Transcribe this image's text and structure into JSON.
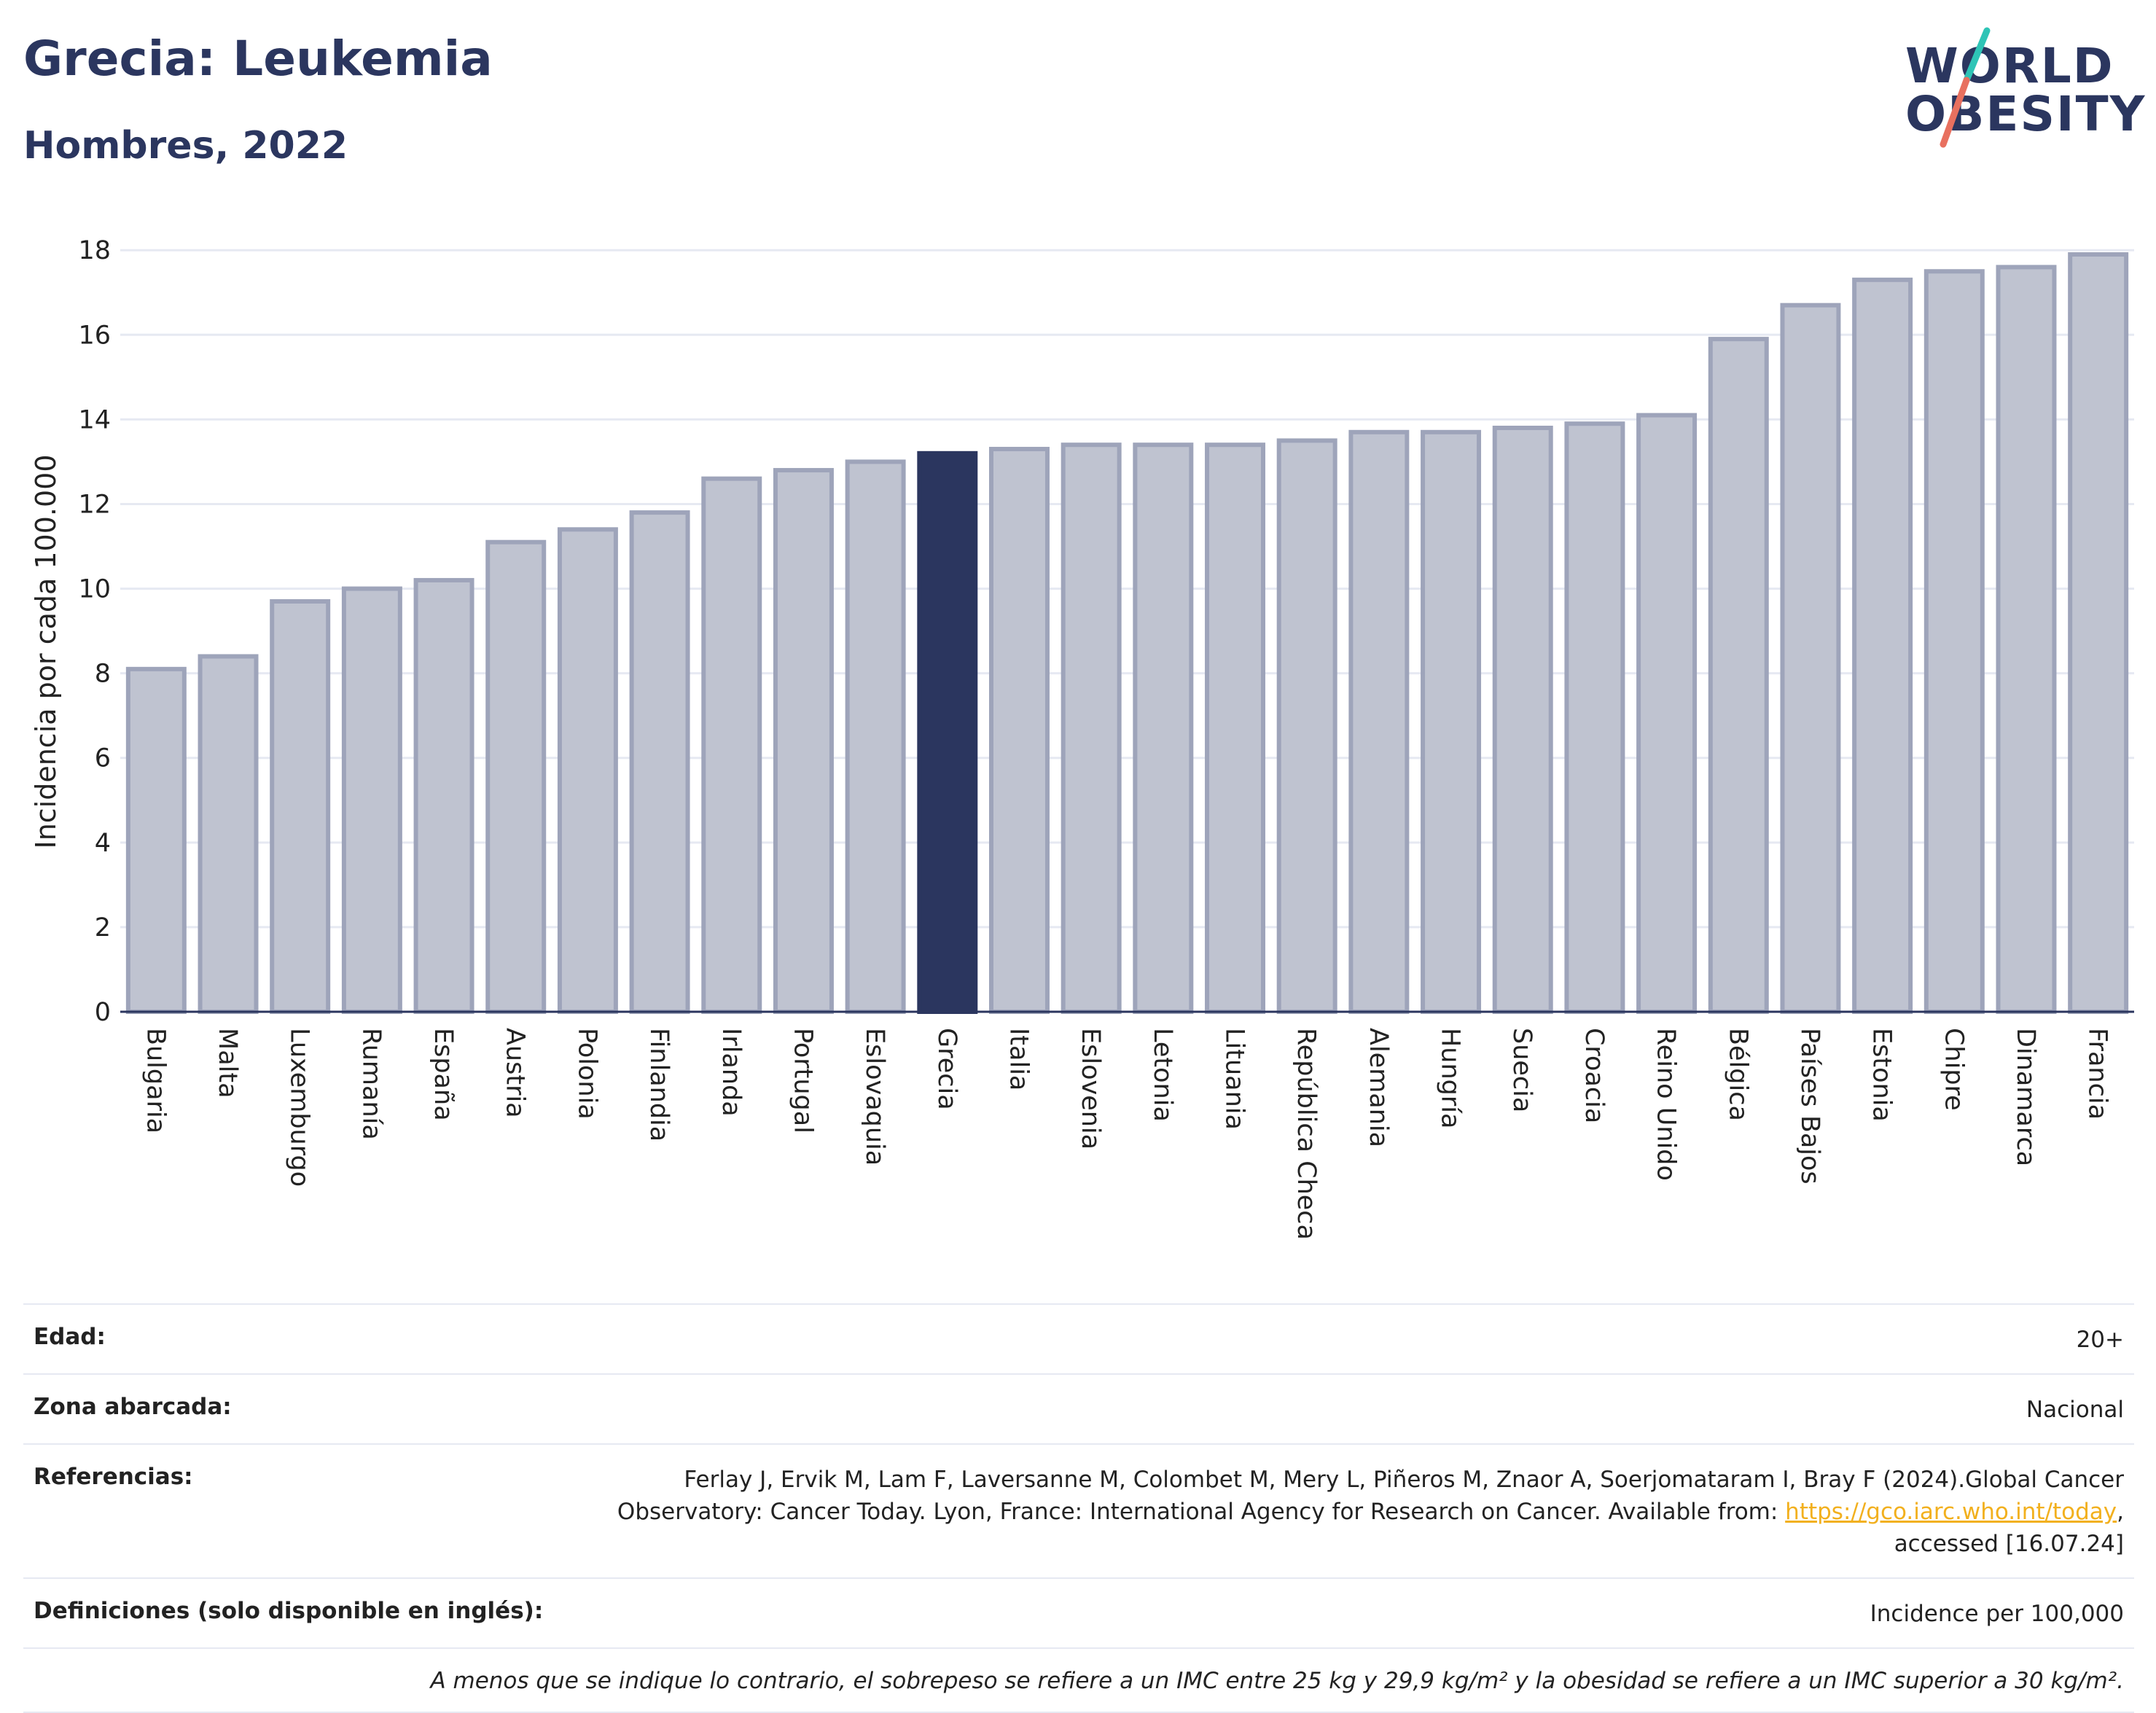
{
  "header": {
    "title": "Grecia: Leukemia",
    "subtitle": "Hombres, 2022"
  },
  "logo": {
    "line1": "WORLD",
    "line2": "OBESITY",
    "slash_colors": [
      "#2ec4b6",
      "#e8705f"
    ]
  },
  "colors": {
    "bar_default_fill": "#bfc3d0",
    "bar_default_stroke": "#9ea4ba",
    "bar_highlight": "#2b365f",
    "grid": "#e6e9f2",
    "axis_text": "#222222"
  },
  "chart_data": {
    "type": "bar",
    "ylabel": "Incidencia por cada 100.000",
    "ylim": [
      0,
      18.4
    ],
    "yticks": [
      0,
      2,
      4,
      6,
      8,
      10,
      12,
      14,
      16,
      18
    ],
    "grid": true,
    "highlight": "Grecia",
    "categories": [
      "Bulgaria",
      "Malta",
      "Luxemburgo",
      "Rumanía",
      "España",
      "Austria",
      "Polonia",
      "Finlandia",
      "Irlanda",
      "Portugal",
      "Eslovaquia",
      "Grecia",
      "Italia",
      "Eslovenia",
      "Letonia",
      "Lituania",
      "República Checa",
      "Alemania",
      "Hungría",
      "Suecia",
      "Croacia",
      "Reino Unido",
      "Bélgica",
      "Países Bajos",
      "Estonia",
      "Chipre",
      "Dinamarca",
      "Francia"
    ],
    "values": [
      8.1,
      8.4,
      9.7,
      10.0,
      10.2,
      11.1,
      11.4,
      11.8,
      12.6,
      12.8,
      13.0,
      13.2,
      13.3,
      13.4,
      13.4,
      13.4,
      13.5,
      13.7,
      13.7,
      13.8,
      13.9,
      14.1,
      15.9,
      16.7,
      17.3,
      17.5,
      17.6,
      17.9
    ]
  },
  "info": {
    "age_label": "Edad:",
    "age_value": "20+",
    "area_label": "Zona abarcada:",
    "area_value": "Nacional",
    "refs_label": "Referencias:",
    "refs_text1": "Ferlay J, Ervik M, Lam F, Laversanne M, Colombet M, Mery L, Piñeros M, Znaor A, Soerjomataram I, Bray F (2024).Global Cancer",
    "refs_text2": "Observatory: Cancer Today. Lyon, France: International Agency for Research on Cancer. Available from: ",
    "refs_link": "https://gco.iarc.who.int/today",
    "refs_text3": ",",
    "refs_text4": "accessed [16.07.24]",
    "defs_label": "Definiciones (solo disponible en inglés):",
    "defs_value": "Incidence per 100,000",
    "note": "A menos que se indique lo contrario, el sobrepeso se refiere a un IMC entre 25 kg y 29,9 kg/m² y la obesidad se refiere a un IMC superior a 30 kg/m²."
  }
}
